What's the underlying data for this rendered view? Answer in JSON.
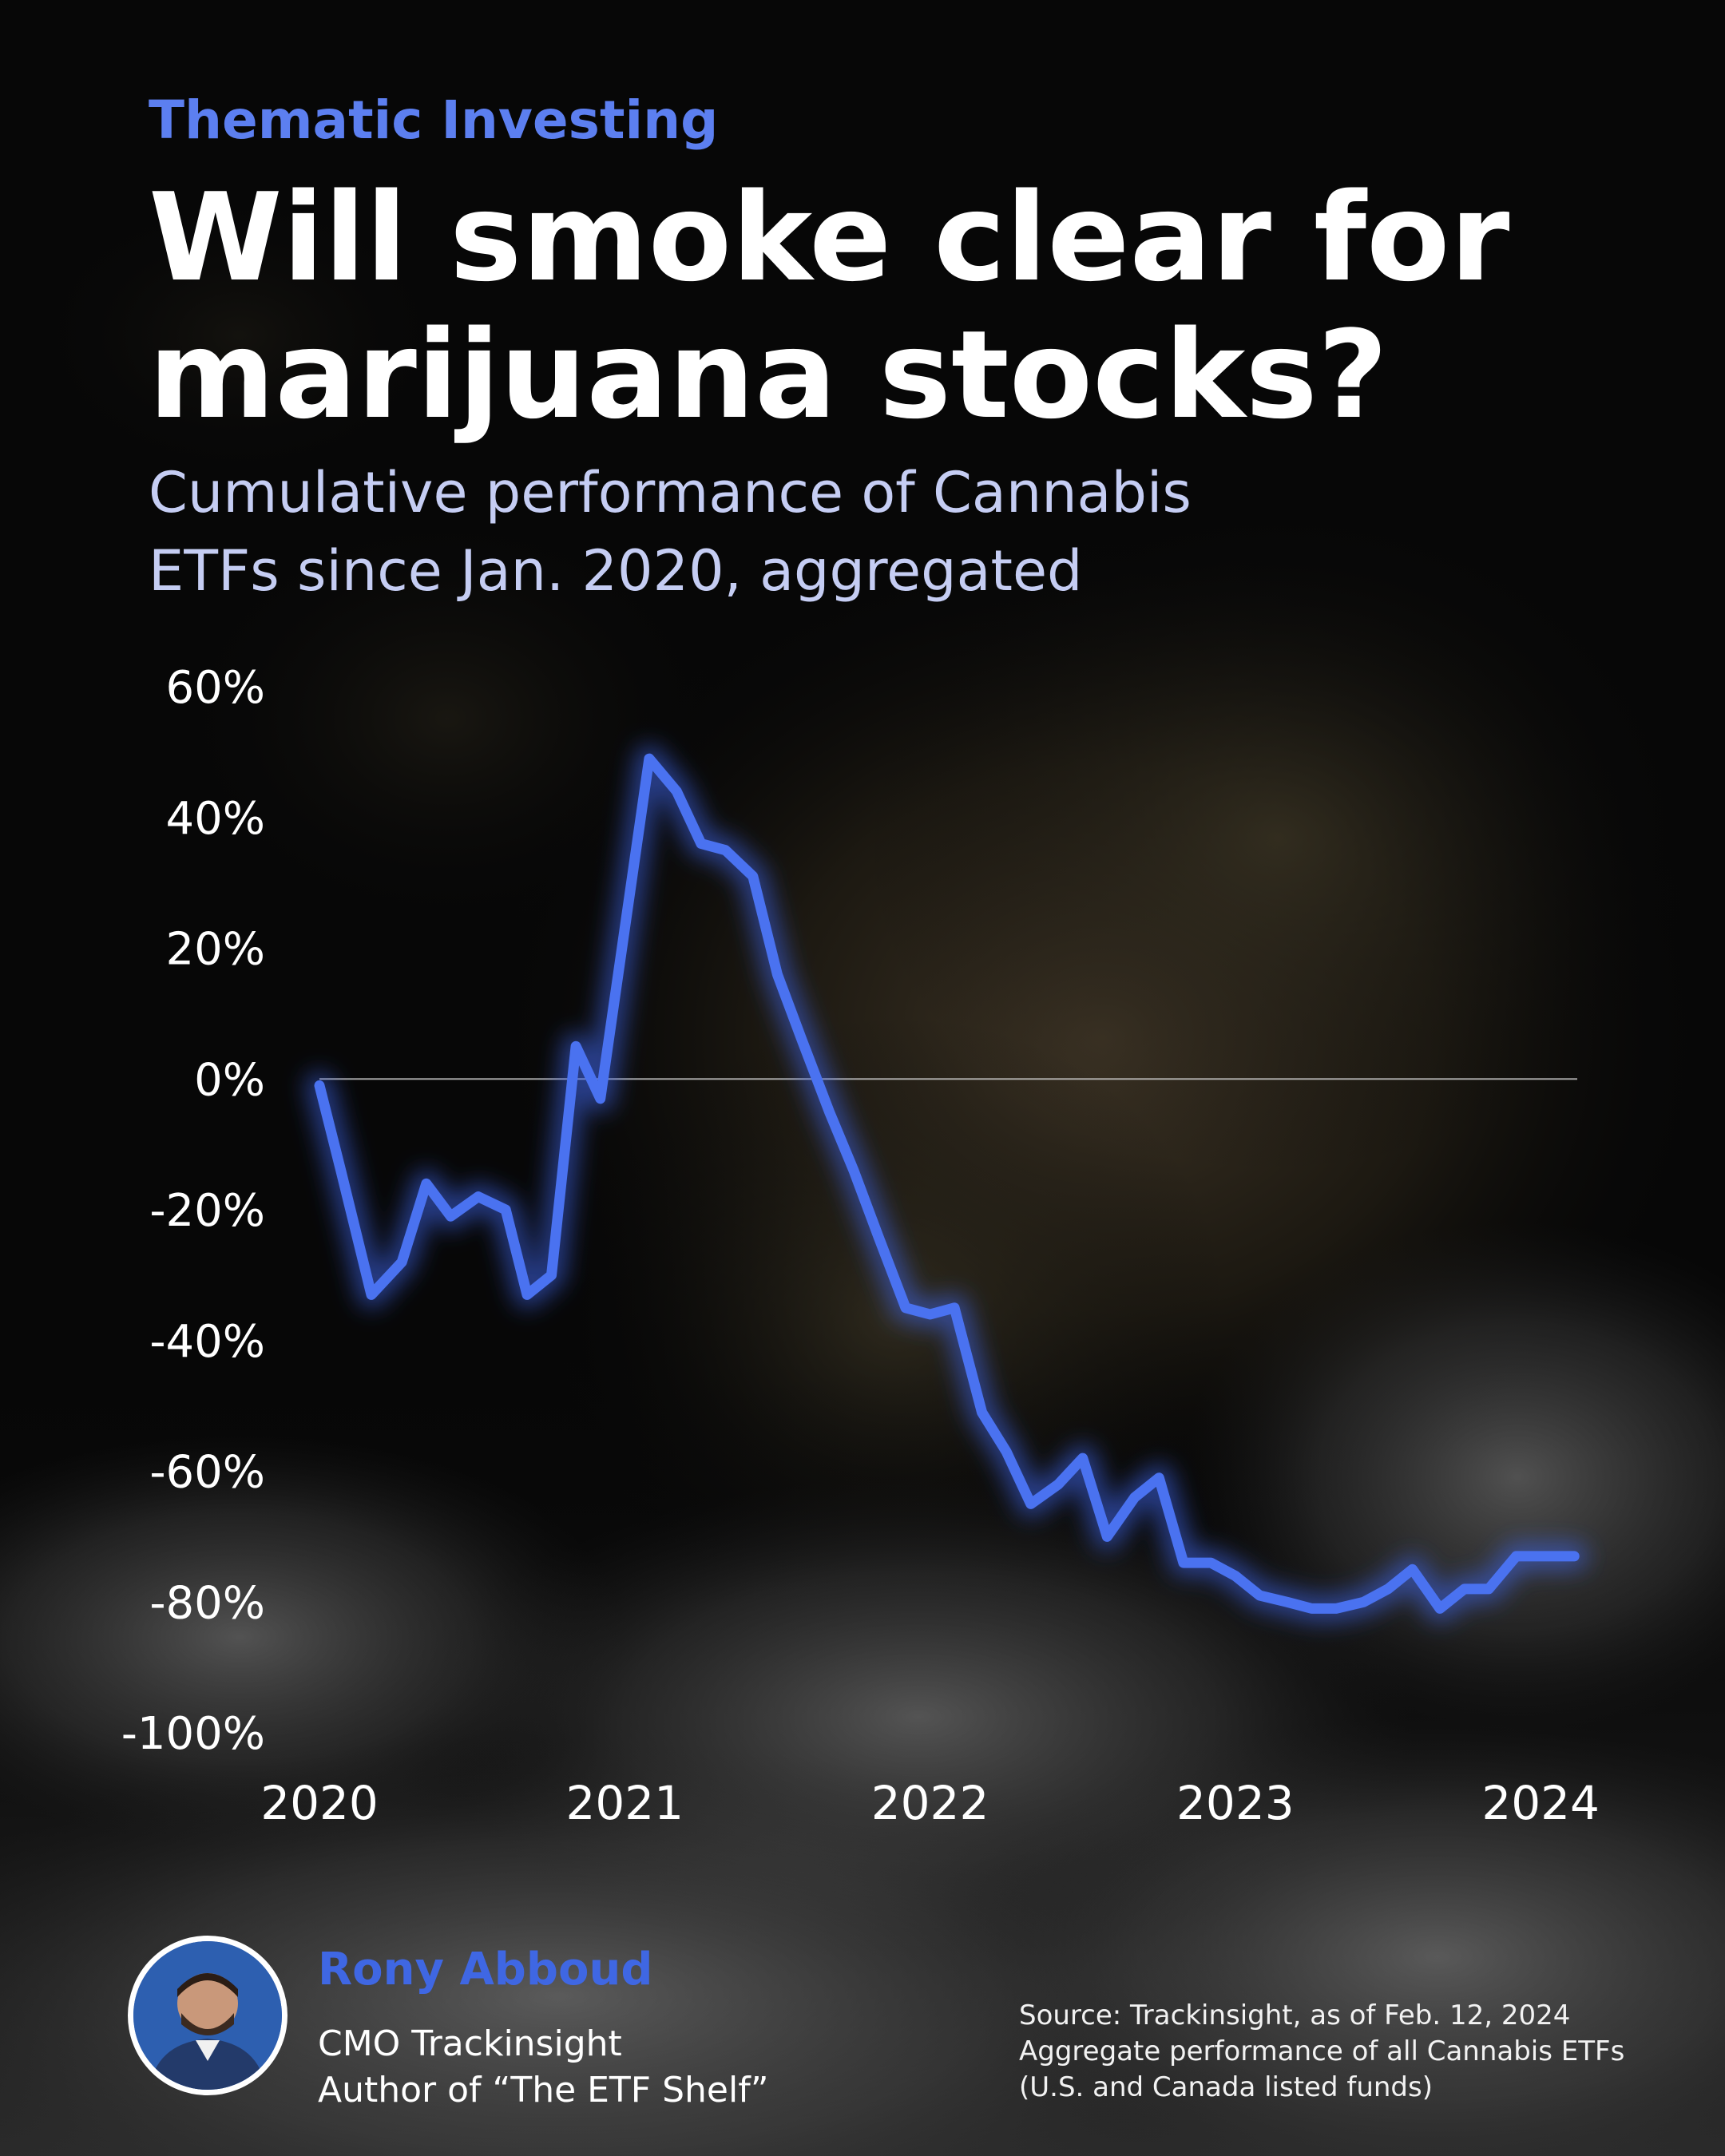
{
  "header": {
    "eyebrow": "Thematic Investing",
    "title": "Will smoke clear for marijuana stocks?",
    "subtitle_line1": "Cumulative performance of Cannabis",
    "subtitle_line2": "ETFs  since Jan. 2020, aggregated"
  },
  "colors": {
    "accent": "#5c7ff0",
    "line": "#4a72f0",
    "background": "#070707"
  },
  "chart_data": {
    "type": "line",
    "title": "",
    "xlabel": "",
    "ylabel": "",
    "ylim": [
      -100,
      60
    ],
    "y_ticks": [
      "60%",
      "40%",
      "20%",
      "0%",
      "-20%",
      "-40%",
      "-60%",
      "-80%",
      "-100%"
    ],
    "x_ticks": [
      "2020",
      "2021",
      "2022",
      "2023",
      "2024"
    ],
    "xlim": [
      2020.0,
      2024.12
    ],
    "grid": false,
    "zero_line": true,
    "legend": "none",
    "series": [
      {
        "name": "",
        "x": [
          2020.0,
          2020.07,
          2020.17,
          2020.27,
          2020.35,
          2020.43,
          2020.52,
          2020.61,
          2020.68,
          2020.76,
          2020.84,
          2020.92,
          2021.0,
          2021.08,
          2021.17,
          2021.25,
          2021.33,
          2021.42,
          2021.5,
          2021.58,
          2021.67,
          2021.75,
          2021.83,
          2021.92,
          2022.0,
          2022.08,
          2022.17,
          2022.25,
          2022.33,
          2022.42,
          2022.5,
          2022.58,
          2022.67,
          2022.75,
          2022.83,
          2022.92,
          2023.0,
          2023.08,
          2023.17,
          2023.25,
          2023.33,
          2023.42,
          2023.5,
          2023.58,
          2023.67,
          2023.75,
          2023.83,
          2023.92,
          2024.0,
          2024.06,
          2024.11
        ],
        "values": [
          -1,
          -14,
          -33,
          -28,
          -16,
          -21,
          -18,
          -20,
          -33,
          -30,
          5,
          -3,
          23,
          49,
          44,
          36,
          35,
          31,
          16,
          6,
          -5,
          -14,
          -24,
          -35,
          -36,
          -35,
          -51,
          -57,
          -65,
          -62,
          -58,
          -70,
          -64,
          -61,
          -74,
          -74,
          -76,
          -79,
          -80,
          -81,
          -81,
          -80,
          -78,
          -75,
          -81,
          -78,
          -78,
          -73,
          -73,
          -73,
          -73
        ]
      }
    ]
  },
  "author": {
    "name": "Rony Abboud",
    "role": "CMO Trackinsight",
    "book": "Author of “The ETF Shelf”"
  },
  "source": {
    "line1": "Source: Trackinsight, as of Feb. 12, 2024",
    "line2": "Aggregate performance of all Cannabis ETFs",
    "line3": "(U.S. and Canada listed funds)"
  }
}
